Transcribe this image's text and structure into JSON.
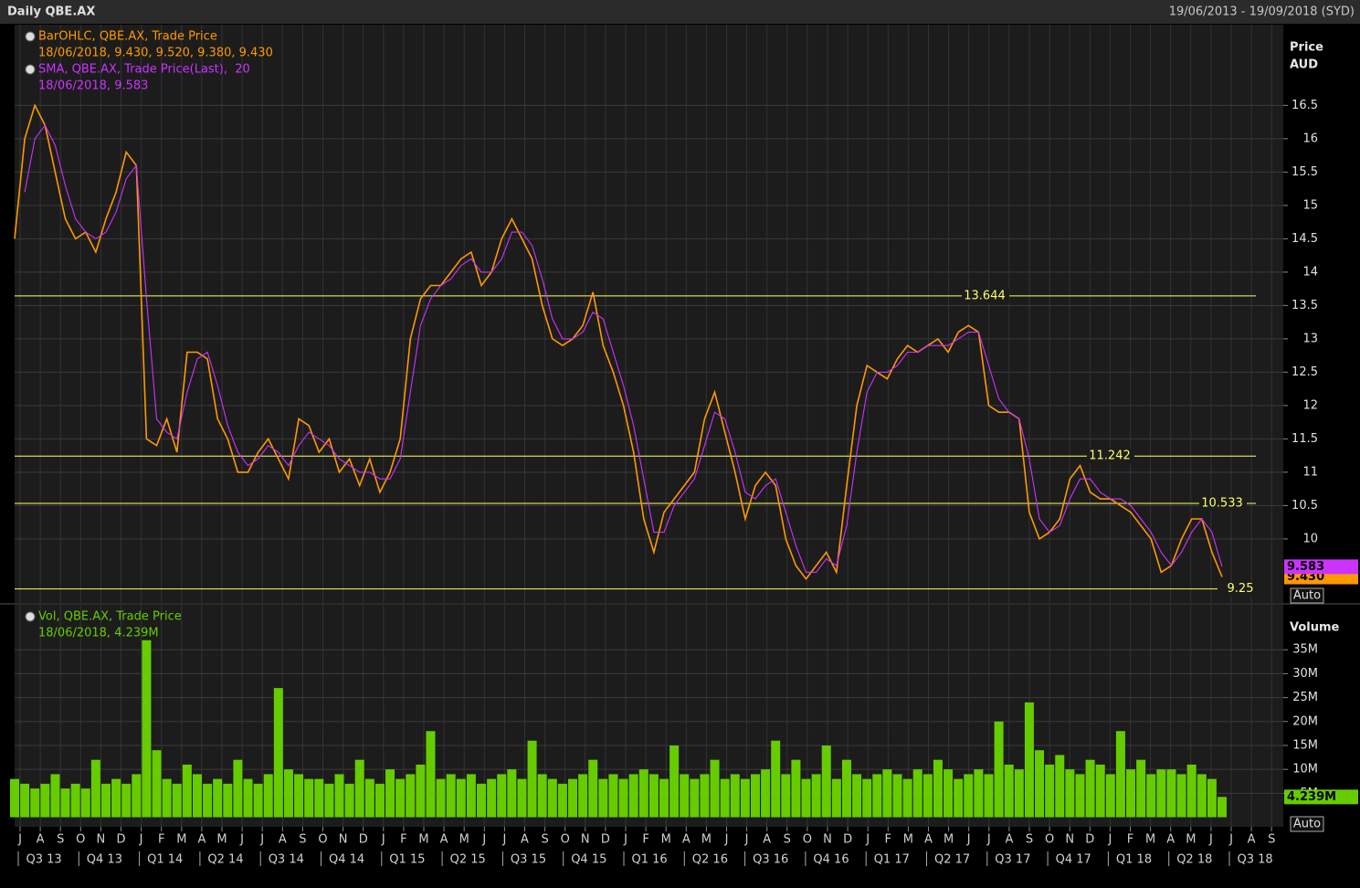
{
  "header": {
    "title": "Daily QBE.AX",
    "range": "19/06/2013 - 19/09/2018 (SYD)"
  },
  "x_axis": {
    "months": [
      "J",
      "A",
      "S",
      "O",
      "N",
      "D",
      "J",
      "F",
      "M",
      "A",
      "M",
      "J",
      "J",
      "A",
      "S",
      "O",
      "N",
      "D",
      "J",
      "F",
      "M",
      "A",
      "M",
      "J",
      "J",
      "A",
      "S",
      "O",
      "N",
      "D",
      "J",
      "F",
      "M",
      "A",
      "M",
      "J",
      "J",
      "A",
      "S",
      "O",
      "N",
      "D",
      "J",
      "F",
      "M",
      "A",
      "M",
      "J",
      "J",
      "A",
      "S",
      "O",
      "N",
      "D",
      "J",
      "F",
      "M",
      "A",
      "M",
      "J",
      "J",
      "A",
      "S"
    ],
    "quarters": [
      "Q3 13",
      "Q4 13",
      "Q1 14",
      "Q2 14",
      "Q3 14",
      "Q4 14",
      "Q1 15",
      "Q2 15",
      "Q3 15",
      "Q4 15",
      "Q1 16",
      "Q2 16",
      "Q3 16",
      "Q4 16",
      "Q1 17",
      "Q2 17",
      "Q3 17",
      "Q4 17",
      "Q1 18",
      "Q2 18",
      "Q3 18"
    ]
  },
  "chart_data": [
    {
      "type": "line",
      "axis_title": "Price",
      "axis_unit": "AUD",
      "scale_button": "Auto",
      "ylim": [
        9.04,
        17.71
      ],
      "yticks": [
        10,
        10.5,
        11,
        11.5,
        12,
        12.5,
        13,
        13.5,
        14,
        14.5,
        15,
        15.5,
        16,
        16.5
      ],
      "grid": true,
      "hlines": [
        13.644,
        11.242,
        10.533,
        9.25
      ],
      "hline_color": "#ffff66",
      "series": [
        {
          "name": "BarOHLC, QBE.AX, Trade Price",
          "legend_detail": "18/06/2018, 9.430, 9.520, 9.380, 9.430",
          "color": "#ff9900",
          "last": {
            "value": 9.43,
            "label": "9.430"
          },
          "values": [
            14.5,
            16.0,
            16.5,
            16.2,
            15.5,
            14.8,
            14.5,
            14.6,
            14.3,
            14.8,
            15.2,
            15.8,
            15.6,
            11.5,
            11.4,
            11.8,
            11.3,
            12.8,
            12.8,
            12.7,
            11.8,
            11.5,
            11.0,
            11.0,
            11.3,
            11.5,
            11.2,
            10.9,
            11.8,
            11.7,
            11.3,
            11.5,
            11.0,
            11.2,
            10.8,
            11.2,
            10.7,
            11.0,
            11.5,
            13.0,
            13.6,
            13.8,
            13.8,
            14.0,
            14.2,
            14.3,
            13.8,
            14.0,
            14.5,
            14.8,
            14.5,
            14.2,
            13.5,
            13.0,
            12.9,
            13.0,
            13.2,
            13.7,
            12.9,
            12.5,
            12.0,
            11.3,
            10.3,
            9.8,
            10.4,
            10.6,
            10.8,
            11.0,
            11.8,
            12.2,
            11.6,
            11.0,
            10.3,
            10.8,
            11.0,
            10.8,
            10.0,
            9.6,
            9.4,
            9.6,
            9.8,
            9.5,
            10.8,
            12.0,
            12.6,
            12.5,
            12.4,
            12.7,
            12.9,
            12.8,
            12.9,
            13.0,
            12.8,
            13.1,
            13.2,
            13.1,
            12.0,
            11.9,
            11.9,
            11.8,
            10.4,
            10.0,
            10.1,
            10.3,
            10.9,
            11.1,
            10.7,
            10.6,
            10.6,
            10.5,
            10.4,
            10.2,
            10.0,
            9.5,
            9.6,
            10.0,
            10.3,
            10.3,
            9.8,
            9.43
          ]
        },
        {
          "name": "SMA, QBE.AX, Trade Price(Last),  20",
          "legend_detail": "18/06/2018, 9.583",
          "color": "#cc33ff",
          "last": 9.583,
          "values": [
            null,
            15.2,
            16.0,
            16.2,
            15.9,
            15.3,
            14.8,
            14.6,
            14.5,
            14.6,
            14.9,
            15.4,
            15.6,
            13.6,
            11.8,
            11.6,
            11.5,
            12.2,
            12.7,
            12.8,
            12.3,
            11.7,
            11.3,
            11.1,
            11.2,
            11.4,
            11.3,
            11.1,
            11.4,
            11.6,
            11.5,
            11.4,
            11.2,
            11.1,
            11.0,
            11.0,
            10.9,
            10.9,
            11.2,
            12.2,
            13.2,
            13.6,
            13.8,
            13.9,
            14.1,
            14.2,
            14.0,
            14.0,
            14.2,
            14.6,
            14.6,
            14.4,
            13.9,
            13.3,
            13.0,
            13.0,
            13.1,
            13.4,
            13.3,
            12.8,
            12.3,
            11.7,
            10.9,
            10.1,
            10.1,
            10.5,
            10.7,
            10.9,
            11.4,
            11.9,
            11.8,
            11.3,
            10.7,
            10.6,
            10.8,
            10.9,
            10.4,
            9.9,
            9.5,
            9.5,
            9.7,
            9.6,
            10.2,
            11.3,
            12.2,
            12.5,
            12.5,
            12.6,
            12.8,
            12.8,
            12.9,
            12.9,
            12.9,
            13.0,
            13.1,
            13.1,
            12.6,
            12.1,
            11.9,
            11.8,
            11.2,
            10.3,
            10.1,
            10.2,
            10.6,
            10.9,
            10.9,
            10.7,
            10.6,
            10.6,
            10.5,
            10.3,
            10.1,
            9.8,
            9.6,
            9.8,
            10.1,
            10.3,
            10.1,
            9.583
          ]
        }
      ]
    },
    {
      "type": "bar",
      "axis_title": "Volume",
      "scale_button": "Auto",
      "ylim": [
        -2,
        44.4
      ],
      "yticks": [
        {
          "value": 5,
          "label": "5M"
        },
        {
          "value": 10,
          "label": "10M"
        },
        {
          "value": 15,
          "label": "15M"
        },
        {
          "value": 20,
          "label": "20M"
        },
        {
          "value": 25,
          "label": "25M"
        },
        {
          "value": 30,
          "label": "30M"
        },
        {
          "value": 35,
          "label": "35M"
        }
      ],
      "grid": true,
      "series": [
        {
          "name": "Vol, QBE.AX, Trade Price",
          "legend_detail": "18/06/2018, 4.239M",
          "color": "#66cc00",
          "last": {
            "value": 4.239,
            "label": "4.239M"
          },
          "values": [
            8,
            7,
            6,
            7,
            9,
            6,
            7,
            6,
            12,
            7,
            8,
            7,
            9,
            37,
            14,
            8,
            7,
            11,
            9,
            7,
            8,
            7,
            12,
            8,
            7,
            9,
            27,
            10,
            9,
            8,
            8,
            7,
            9,
            7,
            12,
            8,
            7,
            10,
            8,
            9,
            11,
            18,
            8,
            9,
            8,
            9,
            7,
            8,
            9,
            10,
            8,
            16,
            9,
            8,
            7,
            8,
            9,
            12,
            8,
            9,
            8,
            9,
            10,
            9,
            8,
            15,
            9,
            8,
            9,
            12,
            8,
            9,
            8,
            9,
            10,
            16,
            9,
            12,
            8,
            9,
            15,
            8,
            12,
            9,
            8,
            9,
            10,
            9,
            8,
            10,
            9,
            12,
            10,
            8,
            9,
            10,
            9,
            20,
            11,
            10,
            24,
            14,
            11,
            13,
            10,
            9,
            12,
            11,
            9,
            18,
            10,
            12,
            9,
            10,
            10,
            9,
            11,
            9,
            8,
            4.239
          ]
        }
      ]
    }
  ]
}
